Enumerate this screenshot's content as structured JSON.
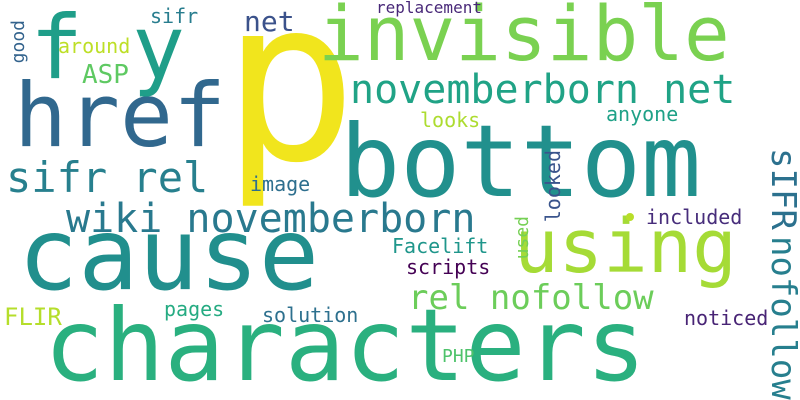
{
  "cloud": {
    "words": [
      {
        "text": "p",
        "color": "#f1e51d"
      },
      {
        "text": "characters",
        "color": "#2ab07f"
      },
      {
        "text": "cause",
        "color": "#218f8d"
      },
      {
        "text": "bottom",
        "color": "#21908d"
      },
      {
        "text": "invisible",
        "color": "#7ad151"
      },
      {
        "text": "href",
        "color": "#31688e"
      },
      {
        "text": "using",
        "color": "#a5db36"
      },
      {
        "text": "f",
        "color": "#1f9e89"
      },
      {
        "text": "y",
        "color": "#1f9e89"
      },
      {
        "text": "novemberborn net",
        "color": "#20a386"
      },
      {
        "text": "wiki novemberborn",
        "color": "#29798e"
      },
      {
        "text": "sifr rel",
        "color": "#27808e"
      },
      {
        "text": "rel nofollow",
        "color": "#6ccd5a"
      },
      {
        "text": "nofollow",
        "color": "#277f8e"
      },
      {
        "text": "sIFR",
        "color": "#2c718e"
      },
      {
        "text": "net",
        "color": "#3b528b"
      },
      {
        "text": "sifr",
        "color": "#287d8e"
      },
      {
        "text": "replacement",
        "color": "#482878"
      },
      {
        "text": "around",
        "color": "#bddf26"
      },
      {
        "text": "ASP",
        "color": "#5ec962"
      },
      {
        "text": "good",
        "color": "#33638d"
      },
      {
        "text": "looks",
        "color": "#addc30"
      },
      {
        "text": "anyone",
        "color": "#1fa187"
      },
      {
        "text": "image",
        "color": "#2e6f8e"
      },
      {
        "text": "looked",
        "color": "#3a548c"
      },
      {
        "text": "included",
        "color": "#472d7b"
      },
      {
        "text": "Facelift",
        "color": "#1f968b"
      },
      {
        "text": "used",
        "color": "#75d054"
      },
      {
        "text": "scripts",
        "color": "#440154"
      },
      {
        "text": "FLIR",
        "color": "#b5de2b"
      },
      {
        "text": "pages",
        "color": "#25ab82"
      },
      {
        "text": "solution",
        "color": "#2d708e"
      },
      {
        "text": "noticed",
        "color": "#482475"
      },
      {
        "text": "PHP",
        "color": "#4ec36b"
      }
    ]
  }
}
